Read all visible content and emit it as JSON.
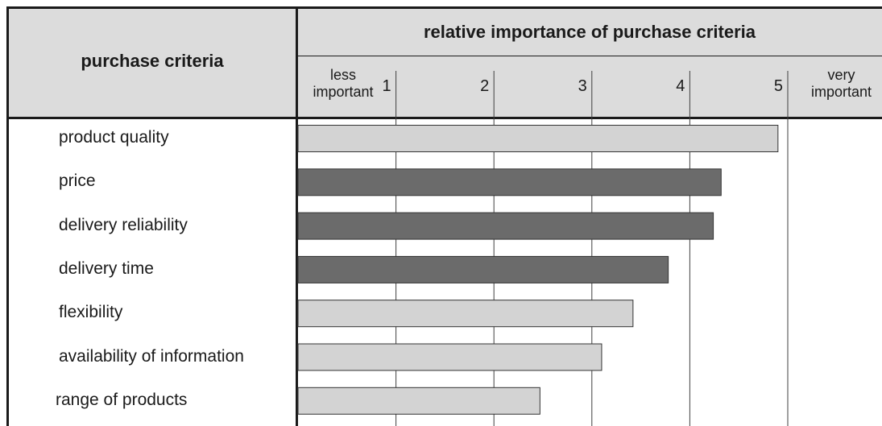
{
  "header": {
    "left_title": "purchase criteria",
    "right_title": "relative importance of purchase criteria",
    "low_end_label_line1": "less",
    "low_end_label_line2": "important",
    "high_end_label_line1": "very",
    "high_end_label_line2": "important"
  },
  "colors": {
    "header_fill": "#dcdcdc",
    "bar_light": "#d3d3d3",
    "bar_dark": "#6b6b6b",
    "gridline": "#404040"
  },
  "chart_data": {
    "type": "bar",
    "orientation": "horizontal",
    "categories": [
      "product quality",
      "price",
      "delivery reliability",
      "delivery time",
      "flexibility",
      "availability of information",
      "range of products"
    ],
    "values": [
      4.9,
      4.32,
      4.24,
      3.78,
      3.42,
      3.1,
      2.47
    ],
    "bar_shade": [
      "light",
      "dark",
      "dark",
      "dark",
      "light",
      "light",
      "light"
    ],
    "x_ticks": [
      "1",
      "2",
      "3",
      "4",
      "5"
    ],
    "xlim": [
      0,
      5.97
    ],
    "grid": true,
    "title": "relative importance of purchase criteria"
  }
}
